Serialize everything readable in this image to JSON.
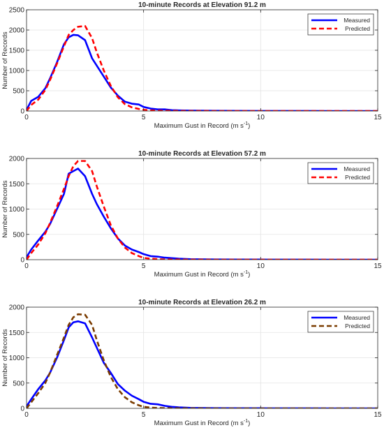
{
  "chart_data": [
    {
      "type": "line",
      "title": "10-minute Records at Elevation 91.2 m",
      "xlabel": "Maximum Gust in Record (m s",
      "xlabel_sup": "-1",
      "xlabel_end": ")",
      "ylabel": "Number of Records",
      "xlim": [
        0,
        15
      ],
      "ylim": [
        0,
        2500
      ],
      "xticks": [
        0,
        5,
        10,
        15
      ],
      "yticks": [
        0,
        500,
        1000,
        1500,
        2000,
        2500
      ],
      "grid": true,
      "legend_position": "top-right",
      "series": [
        {
          "name": "Measured",
          "color": "#0000ff",
          "dash": "solid",
          "x": [
            0,
            0.2,
            0.5,
            0.8,
            1.0,
            1.3,
            1.6,
            1.8,
            2.0,
            2.2,
            2.5,
            2.8,
            3.0,
            3.3,
            3.6,
            3.9,
            4.2,
            4.5,
            4.8,
            5.0,
            5.3,
            5.6,
            5.9,
            6.2,
            6.5,
            7.0,
            8,
            9,
            10,
            11,
            12,
            13,
            14,
            15
          ],
          "y": [
            30,
            250,
            350,
            560,
            800,
            1200,
            1650,
            1820,
            1880,
            1870,
            1750,
            1300,
            1120,
            850,
            580,
            380,
            230,
            180,
            160,
            100,
            60,
            40,
            40,
            20,
            15,
            10,
            5,
            3,
            2,
            1,
            1,
            0,
            0,
            0
          ]
        },
        {
          "name": "Predicted",
          "color": "#ff0000",
          "dash": "dashed",
          "x": [
            0,
            0.2,
            0.5,
            0.8,
            1.0,
            1.3,
            1.6,
            1.8,
            2.0,
            2.2,
            2.5,
            2.8,
            3.0,
            3.3,
            3.6,
            3.9,
            4.2,
            4.5,
            4.8,
            5.0,
            5.3,
            5.6,
            5.9,
            6.2,
            6.5,
            7.0,
            8,
            9,
            10,
            11,
            12,
            13,
            14,
            15
          ],
          "y": [
            0,
            150,
            280,
            520,
            760,
            1170,
            1600,
            1880,
            2000,
            2080,
            2100,
            1800,
            1450,
            1000,
            620,
            340,
            170,
            90,
            50,
            30,
            15,
            8,
            5,
            3,
            2,
            1,
            0,
            0,
            0,
            0,
            0,
            0,
            0,
            0
          ]
        }
      ]
    },
    {
      "type": "line",
      "title": "10-minute Records at Elevation 57.2 m",
      "xlabel": "Maximum Gust in Record (m s",
      "xlabel_sup": "-1",
      "xlabel_end": ")",
      "ylabel": "Number of Records",
      "xlim": [
        0,
        15
      ],
      "ylim": [
        0,
        2000
      ],
      "xticks": [
        0,
        5,
        10,
        15
      ],
      "yticks": [
        0,
        500,
        1000,
        1500,
        2000
      ],
      "grid": true,
      "legend_position": "top-right",
      "series": [
        {
          "name": "Measured",
          "color": "#0000ff",
          "dash": "solid",
          "x": [
            0,
            0.2,
            0.5,
            0.8,
            1.0,
            1.3,
            1.6,
            1.8,
            2.0,
            2.2,
            2.5,
            2.8,
            3.0,
            3.3,
            3.6,
            3.9,
            4.2,
            4.5,
            4.8,
            5.0,
            5.3,
            5.6,
            5.9,
            6.2,
            6.5,
            7.0,
            8,
            9,
            10,
            11,
            12,
            13,
            14,
            15
          ],
          "y": [
            50,
            200,
            380,
            550,
            700,
            1000,
            1300,
            1700,
            1750,
            1800,
            1650,
            1300,
            1100,
            850,
            620,
            420,
            280,
            200,
            150,
            110,
            70,
            60,
            40,
            30,
            20,
            10,
            5,
            3,
            2,
            1,
            1,
            0,
            0,
            0
          ]
        },
        {
          "name": "Predicted",
          "color": "#ff0000",
          "dash": "dashed",
          "x": [
            0,
            0.2,
            0.5,
            0.8,
            1.0,
            1.3,
            1.6,
            1.8,
            2.0,
            2.2,
            2.5,
            2.8,
            3.0,
            3.3,
            3.6,
            3.9,
            4.2,
            4.5,
            4.8,
            5.0,
            5.3,
            5.6,
            5.9,
            6.2,
            6.5,
            7.0,
            8,
            9,
            10,
            11,
            12,
            13,
            14,
            15
          ],
          "y": [
            0,
            130,
            300,
            520,
            720,
            1050,
            1400,
            1650,
            1850,
            1950,
            1950,
            1750,
            1450,
            1050,
            680,
            420,
            240,
            130,
            70,
            35,
            20,
            10,
            5,
            3,
            2,
            1,
            0,
            0,
            0,
            0,
            0,
            0,
            0,
            0
          ]
        }
      ]
    },
    {
      "type": "line",
      "title": "10-minute Records at Elevation 26.2 m",
      "xlabel": "Maximum Gust in Record (m s",
      "xlabel_sup": "-1",
      "xlabel_end": ")",
      "ylabel": "Number of Records",
      "xlim": [
        0,
        15
      ],
      "ylim": [
        0,
        2000
      ],
      "xticks": [
        0,
        5,
        10,
        15
      ],
      "yticks": [
        0,
        500,
        1000,
        1500,
        2000
      ],
      "grid": true,
      "legend_position": "top-right",
      "series": [
        {
          "name": "Measured",
          "color": "#0000ff",
          "dash": "solid",
          "x": [
            0,
            0.2,
            0.5,
            0.8,
            1.0,
            1.3,
            1.6,
            1.8,
            2.0,
            2.2,
            2.5,
            2.8,
            3.0,
            3.3,
            3.6,
            3.9,
            4.2,
            4.5,
            4.8,
            5.0,
            5.3,
            5.6,
            5.9,
            6.2,
            6.5,
            7.0,
            8,
            9,
            10,
            11,
            12,
            13,
            14,
            15
          ],
          "y": [
            40,
            180,
            380,
            550,
            700,
            1000,
            1350,
            1600,
            1700,
            1720,
            1680,
            1400,
            1200,
            900,
            700,
            480,
            350,
            250,
            180,
            130,
            90,
            80,
            50,
            30,
            20,
            10,
            5,
            3,
            2,
            1,
            1,
            0,
            0,
            0
          ]
        },
        {
          "name": "Predicted",
          "color": "#7a3b00",
          "dash": "dashed",
          "x": [
            0,
            0.2,
            0.5,
            0.8,
            1.0,
            1.3,
            1.6,
            1.8,
            2.0,
            2.2,
            2.5,
            2.8,
            3.0,
            3.3,
            3.6,
            3.9,
            4.2,
            4.5,
            4.8,
            5.0,
            5.3,
            5.6,
            5.9,
            6.2,
            6.5,
            7.0,
            8,
            9,
            10,
            11,
            12,
            13,
            14,
            15
          ],
          "y": [
            0,
            120,
            300,
            500,
            700,
            1050,
            1400,
            1650,
            1800,
            1860,
            1850,
            1650,
            1350,
            950,
            620,
            380,
            220,
            120,
            60,
            30,
            15,
            8,
            5,
            3,
            2,
            1,
            0,
            0,
            0,
            0,
            0,
            0,
            0,
            0
          ]
        }
      ]
    }
  ]
}
